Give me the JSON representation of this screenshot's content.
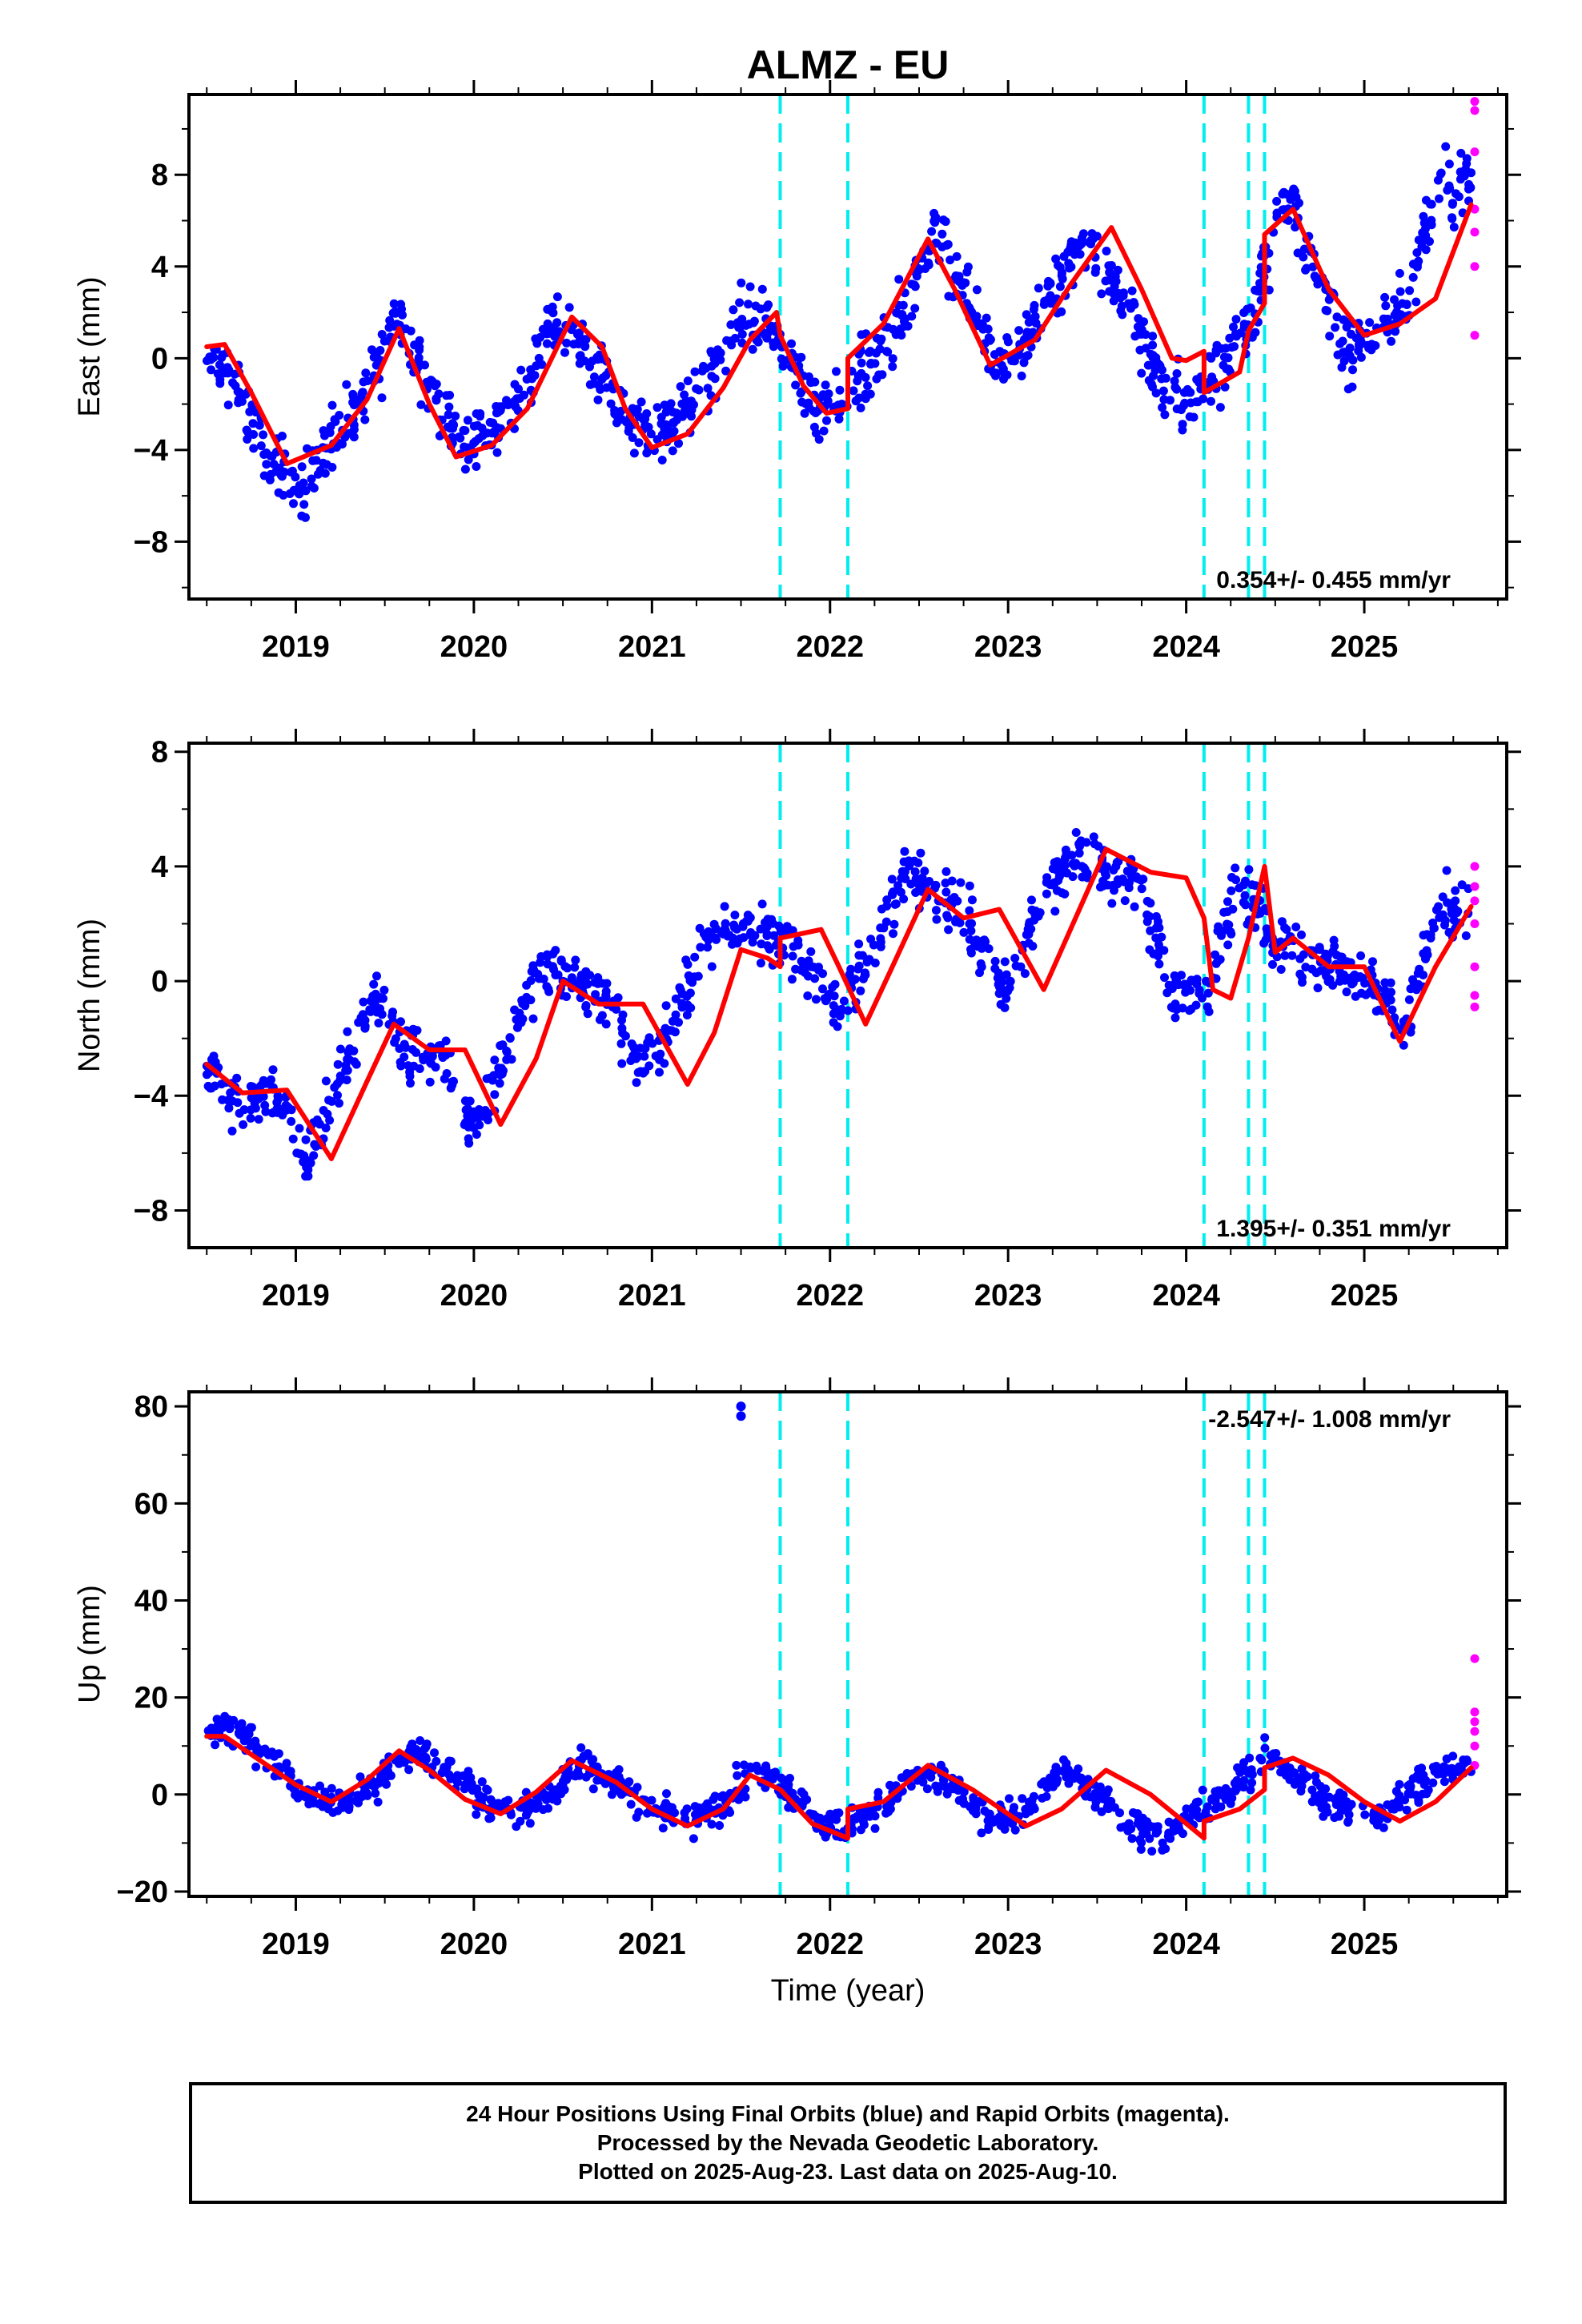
{
  "chart_data": [
    {
      "type": "scatter",
      "title": "ALMZ - EU",
      "ylabel": "East (mm)",
      "xlim": [
        2018.4,
        2025.8
      ],
      "ylim": [
        -10.5,
        11.5
      ],
      "yticks": [
        -8,
        -4,
        0,
        4,
        8
      ],
      "xticks": [
        2019,
        2020,
        2021,
        2022,
        2023,
        2024,
        2025
      ],
      "rate_label": "0.354+/- 0.455 mm/yr",
      "rate_position": "bottom-right",
      "steps": [
        2021.72,
        2022.1,
        2024.1,
        2024.35,
        2024.44
      ],
      "trend": {
        "x": [
          2018.5,
          2018.6,
          2018.75,
          2018.95,
          2019.2,
          2019.4,
          2019.58,
          2019.75,
          2019.9,
          2020.1,
          2020.3,
          2020.55,
          2020.72,
          2020.85,
          2021.0,
          2021.2,
          2021.4,
          2021.55,
          2021.7,
          2021.72,
          2021.85,
          2021.98,
          2022.1,
          2022.1,
          2022.3,
          2022.55,
          2022.7,
          2022.9,
          2023.15,
          2023.35,
          2023.58,
          2023.75,
          2023.92,
          2024.0,
          2024.1,
          2024.1,
          2024.3,
          2024.35,
          2024.44,
          2024.44,
          2024.6,
          2024.8,
          2025.0,
          2025.2,
          2025.4,
          2025.6
        ],
        "y": [
          0.5,
          0.6,
          -1.5,
          -4.6,
          -3.8,
          -1.8,
          1.3,
          -2.0,
          -4.3,
          -3.8,
          -2.2,
          1.8,
          0.5,
          -2.2,
          -3.9,
          -3.3,
          -1.3,
          0.8,
          2.0,
          1.0,
          -1.2,
          -2.4,
          -2.2,
          0.0,
          1.5,
          5.2,
          3.0,
          -0.3,
          0.8,
          3.2,
          5.7,
          3.0,
          0.0,
          -0.1,
          0.3,
          -1.5,
          -0.6,
          1.2,
          2.4,
          5.4,
          6.5,
          3.0,
          1.0,
          1.5,
          2.6,
          6.7
        ]
      },
      "series": [
        {
          "name": "Final Orbits",
          "color": "#0000ff",
          "mean": [
            0.4,
            -1.5,
            -4.5,
            -5.8,
            -3.5,
            -1.5,
            2.0,
            -1.0,
            -3.8,
            -3.2,
            -1.5,
            1.8,
            0.3,
            -2.5,
            -3.4,
            -2.5,
            -0.5,
            2.0,
            1.0,
            -1.5,
            -2.2,
            0.0,
            1.8,
            5.5,
            3.0,
            -0.5,
            1.0,
            3.5,
            5.5,
            2.5,
            -0.5,
            -2.0,
            -0.5,
            1.5,
            7.5,
            4.5,
            0.5,
            0.8,
            2.5,
            7.5
          ],
          "scatter": 1.3
        },
        {
          "name": "Rapid Orbits",
          "color": "#ff00ff",
          "x": [
            2025.62,
            2025.62,
            2025.62,
            2025.62,
            2025.62,
            2025.62,
            2025.62
          ],
          "y": [
            11.2,
            10.8,
            9.0,
            6.5,
            5.5,
            4.0,
            1.0
          ]
        }
      ]
    },
    {
      "type": "scatter",
      "ylabel": "North (mm)",
      "xlim": [
        2018.4,
        2025.8
      ],
      "ylim": [
        -9.3,
        8.3
      ],
      "yticks": [
        -8,
        -4,
        0,
        4,
        8
      ],
      "xticks": [
        2019,
        2020,
        2021,
        2022,
        2023,
        2024,
        2025
      ],
      "rate_label": "1.395+/- 0.351 mm/yr",
      "rate_position": "bottom-right",
      "steps": [
        2021.72,
        2022.1,
        2024.1,
        2024.35,
        2024.44
      ],
      "trend": {
        "x": [
          2018.5,
          2018.7,
          2018.95,
          2019.2,
          2019.4,
          2019.55,
          2019.75,
          2019.95,
          2020.15,
          2020.35,
          2020.5,
          2020.7,
          2020.95,
          2021.2,
          2021.35,
          2021.5,
          2021.65,
          2021.72,
          2021.72,
          2021.95,
          2022.05,
          2022.2,
          2022.35,
          2022.55,
          2022.75,
          2022.95,
          2023.2,
          2023.4,
          2023.55,
          2023.8,
          2024.0,
          2024.1,
          2024.15,
          2024.25,
          2024.35,
          2024.44,
          2024.5,
          2024.6,
          2024.8,
          2025.0,
          2025.2,
          2025.4,
          2025.6
        ],
        "y": [
          -2.9,
          -3.9,
          -3.8,
          -6.2,
          -3.5,
          -1.5,
          -2.4,
          -2.4,
          -5.0,
          -2.7,
          0.0,
          -0.8,
          -0.8,
          -3.6,
          -1.8,
          1.1,
          0.8,
          0.5,
          1.5,
          1.8,
          0.5,
          -1.5,
          0.5,
          3.2,
          2.2,
          2.5,
          -0.3,
          2.5,
          4.6,
          3.8,
          3.6,
          2.2,
          -0.3,
          -0.6,
          1.5,
          4.0,
          1.0,
          1.5,
          0.5,
          0.5,
          -2.1,
          0.5,
          2.6
        ]
      },
      "series": [
        {
          "name": "Final Orbits",
          "color": "#0000ff",
          "mean": [
            -3.0,
            -4.5,
            -3.7,
            -6.2,
            -3.5,
            -0.5,
            -2.5,
            -2.5,
            -5.2,
            -2.5,
            0.5,
            0.2,
            -0.5,
            -3.2,
            -1.5,
            1.5,
            1.8,
            1.8,
            0.6,
            -1.0,
            1.0,
            4.0,
            3.0,
            2.0,
            -0.5,
            2.5,
            4.5,
            3.8,
            3.5,
            -0.3,
            -0.5,
            3.5,
            1.5,
            1.0,
            0.5,
            0.0,
            -1.8,
            2.5
          ],
          "scatter": 0.9
        },
        {
          "name": "Rapid Orbits",
          "color": "#ff00ff",
          "x": [
            2025.62,
            2025.62,
            2025.62,
            2025.62,
            2025.62,
            2025.62,
            2025.62
          ],
          "y": [
            4.0,
            3.3,
            2.8,
            2.0,
            0.5,
            -0.5,
            -0.9
          ]
        }
      ]
    },
    {
      "type": "scatter",
      "ylabel": "Up (mm)",
      "xlabel": "Time (year)",
      "xlim": [
        2018.4,
        2025.8
      ],
      "ylim": [
        -21,
        83
      ],
      "yticks": [
        -20,
        0,
        20,
        40,
        60,
        80
      ],
      "xticks": [
        2019,
        2020,
        2021,
        2022,
        2023,
        2024,
        2025
      ],
      "rate_label": "-2.547+/- 1.008 mm/yr",
      "rate_position": "top-right",
      "steps": [
        2021.72,
        2022.1,
        2024.1,
        2024.35,
        2024.44
      ],
      "outliers": {
        "x": [
          2021.5,
          2021.5
        ],
        "y": [
          80,
          78
        ]
      },
      "trend": {
        "x": [
          2018.5,
          2018.6,
          2018.8,
          2019.0,
          2019.2,
          2019.4,
          2019.58,
          2019.75,
          2019.95,
          2020.15,
          2020.35,
          2020.55,
          2020.8,
          2021.0,
          2021.2,
          2021.4,
          2021.55,
          2021.72,
          2021.9,
          2022.1,
          2022.1,
          2022.3,
          2022.55,
          2022.8,
          2023.1,
          2023.3,
          2023.55,
          2023.8,
          2024.0,
          2024.1,
          2024.1,
          2024.3,
          2024.44,
          2024.44,
          2024.6,
          2024.8,
          2025.0,
          2025.2,
          2025.4,
          2025.6
        ],
        "y": [
          12,
          12,
          7,
          2,
          -1.5,
          3,
          9,
          5,
          -1,
          -4,
          0.5,
          7,
          2.5,
          -3,
          -6.5,
          -3,
          4,
          1,
          -6,
          -9,
          -3,
          -1.5,
          6,
          1,
          -6.5,
          -3,
          5,
          0,
          -6,
          -9,
          -5.5,
          -3,
          1,
          5.5,
          7.5,
          4,
          -1.5,
          -5.5,
          -1.5,
          5.5
        ]
      },
      "series": [
        {
          "name": "Final Orbits",
          "color": "#0000ff",
          "mean": [
            14.0,
            13.0,
            6.0,
            0.0,
            -2.0,
            3.0,
            9.0,
            5.0,
            0.0,
            -4.0,
            0.0,
            7.0,
            2.0,
            -3.0,
            -6.0,
            -3.0,
            5.0,
            1.0,
            -6.0,
            -6.0,
            -1.0,
            5.0,
            1.0,
            -6.0,
            -3.0,
            5.0,
            1.0,
            -6.0,
            -9.0,
            -3.0,
            1.0,
            8.0,
            3.0,
            -2.0,
            -5.0,
            -1.0,
            5.0
          ],
          "scatter": 3.0
        },
        {
          "name": "Rapid Orbits",
          "color": "#ff00ff",
          "x": [
            2025.62,
            2025.62,
            2025.62,
            2025.62,
            2025.62,
            2025.62
          ],
          "y": [
            28,
            17,
            15,
            13,
            10,
            6
          ]
        }
      ]
    }
  ],
  "colors": {
    "trend": "#ff0000",
    "steps": "#00eeee",
    "final": "#0000ff",
    "rapid": "#ff00ff"
  },
  "footer": {
    "line1": "24 Hour Positions Using Final Orbits (blue) and Rapid Orbits (magenta).",
    "line2": "Processed by the Nevada Geodetic Laboratory.",
    "line3": "Plotted on 2025-Aug-23. Last data on 2025-Aug-10."
  }
}
